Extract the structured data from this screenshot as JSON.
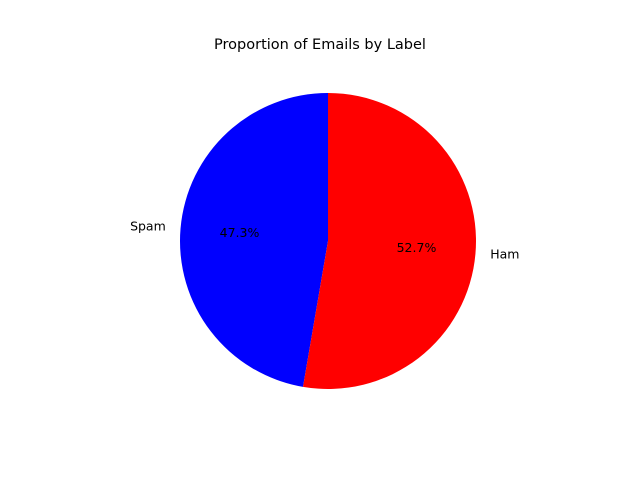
{
  "chart_data": {
    "type": "pie",
    "title": "Proportion of Emails by Label",
    "slices": [
      {
        "label": "Spam",
        "percent": 47.3,
        "pct_text": "47.3%",
        "color": "#0000ff"
      },
      {
        "label": "Ham",
        "percent": 52.7,
        "pct_text": "52.7%",
        "color": "#ff0000"
      }
    ],
    "start_angle_deg": 90,
    "direction": "counterclockwise"
  }
}
